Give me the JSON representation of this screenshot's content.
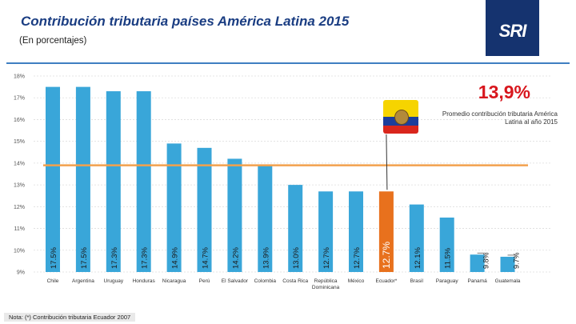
{
  "slide": {
    "title": "Contribución tributaria países América Latina 2015",
    "subtitle": "(En porcentajes)",
    "logo_text": "SRI",
    "note": "Nota: (*) Contribución tributaria Ecuador 2007",
    "flag_icon": "ecuador-flag-icon"
  },
  "average": {
    "value_label": "13,9%",
    "value": 13.9,
    "description": "Promedio contribución tributaria América Latina al año 2015",
    "color": "#f2a14d"
  },
  "colors": {
    "title": "#1a3d82",
    "bar": "#39a6d9",
    "highlight": "#e8711d",
    "logo_bg": "#15336f",
    "average_value": "#d8171e"
  },
  "chart_data": {
    "type": "bar",
    "title": "Contribución tributaria países América Latina 2015",
    "ylabel": "",
    "xlabel": "",
    "ylim": [
      9,
      18
    ],
    "y_ticks": [
      "9%",
      "10%",
      "11%",
      "12%",
      "13%",
      "14%",
      "15%",
      "16%",
      "17%",
      "18%"
    ],
    "categories": [
      "Chile",
      "Argentina",
      "Uruguay",
      "Honduras",
      "Nicaragua",
      "Perú",
      "El Salvador",
      "Colombia",
      "Costa Rica",
      "República Dominicana",
      "México",
      "Ecuador*",
      "Brasil",
      "Paraguay",
      "Panamá",
      "Guatemala"
    ],
    "values": [
      17.5,
      17.5,
      17.3,
      17.3,
      14.9,
      14.7,
      14.2,
      13.9,
      13.0,
      12.7,
      12.7,
      12.7,
      12.1,
      11.5,
      9.8,
      9.7
    ],
    "value_labels": [
      "17.5%",
      "17.5%",
      "17.3%",
      "17.3%",
      "14.9%",
      "14.7%",
      "14.2%",
      "13.9%",
      "13.0%",
      "12.7%",
      "12.7%",
      "12.7%",
      "12.1%",
      "11.5%",
      "9.8%",
      "9.7%"
    ],
    "highlight": "Ecuador*",
    "average_line": 13.9,
    "grid": true,
    "legend": "none"
  }
}
